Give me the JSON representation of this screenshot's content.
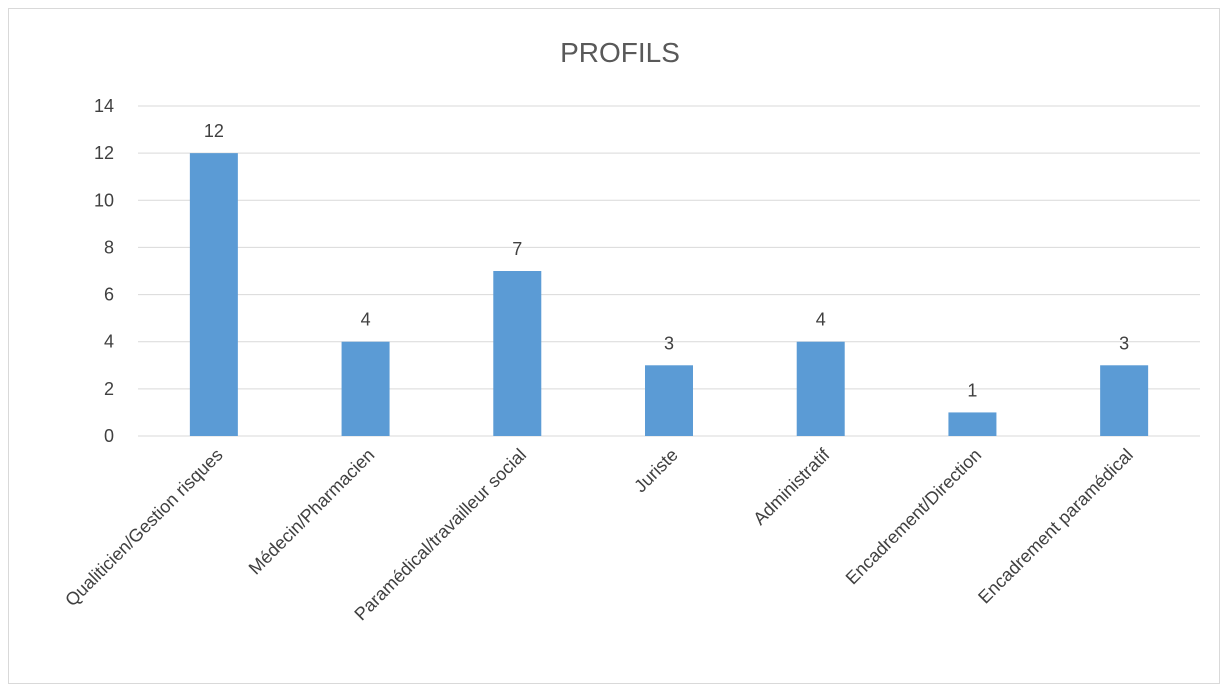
{
  "chart_data": {
    "type": "bar",
    "title": "PROFILS",
    "categories": [
      "Qualiticien/Gestion risques",
      "Médecin/Pharmacien",
      "Paramédical/travailleur social",
      "Juriste",
      "Administratif",
      "Encadrement/Direction",
      "Encadrement paramédical"
    ],
    "values": [
      12,
      4,
      7,
      3,
      4,
      1,
      3
    ],
    "ylim": [
      0,
      14
    ],
    "yticks": [
      0,
      2,
      4,
      6,
      8,
      10,
      12,
      14
    ],
    "grid": true,
    "data_labels": true,
    "legend": "none",
    "bar_color": "#5b9bd5"
  }
}
